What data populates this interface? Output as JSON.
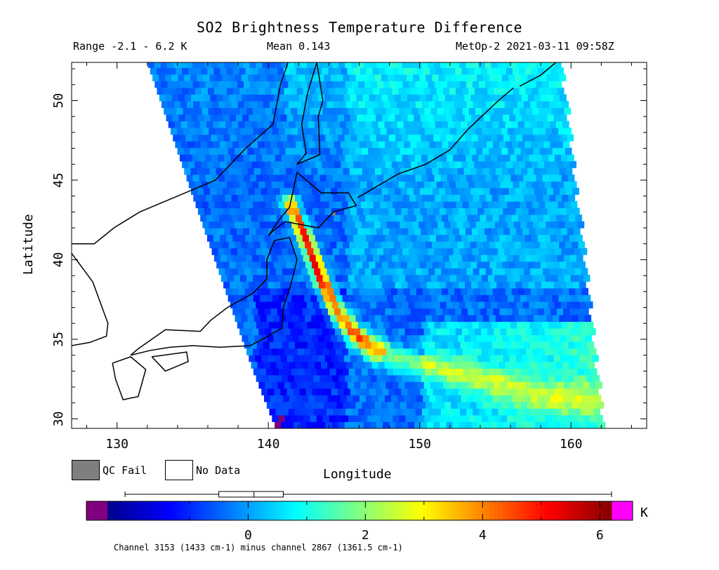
{
  "header": {
    "title": "SO2 Brightness Temperature Difference",
    "range": "Range -2.1 - 6.2 K",
    "mean": "Mean 0.143",
    "satellite_time": "MetOp-2 2021-03-11 09:58Z"
  },
  "legend": {
    "qc_fail": "QC Fail",
    "no_data": "No Data",
    "qc_fail_color": "#7f7f7f",
    "no_data_color": "#ffffff"
  },
  "colorbar": {
    "unit": "K",
    "ticks": [
      "0",
      "2",
      "4",
      "6"
    ],
    "tick_values": [
      0,
      2,
      4,
      6
    ],
    "min": -2.7,
    "max": 6.45,
    "under_color": "#800080",
    "over_color": "#ff00ff",
    "footnote": "Channel 3153 (1433 cm-1) minus channel 2867 (1361.5 cm-1)",
    "boxplot": {
      "min": -2.1,
      "q1": -0.5,
      "median": 0.1,
      "q3": 0.6,
      "max": 6.2
    }
  },
  "chart_data": {
    "type": "heatmap",
    "title": "SO2 Brightness Temperature Difference",
    "xlabel": "Longitude",
    "ylabel": "Latitude",
    "xlim": [
      127,
      165
    ],
    "ylim": [
      29.4,
      52.4
    ],
    "x_ticks": [
      "130",
      "140",
      "150",
      "160"
    ],
    "x_tick_values": [
      130,
      140,
      150,
      160
    ],
    "y_ticks": [
      "30",
      "35",
      "40",
      "45",
      "50"
    ],
    "y_tick_values": [
      30,
      35,
      40,
      45,
      50
    ],
    "value_range": [
      -2.1,
      6.2
    ],
    "mean": 0.143,
    "units": "K",
    "swath": {
      "left_edge": [
        [
          132,
          52.4
        ],
        [
          135,
          44
        ],
        [
          137,
          38.5
        ],
        [
          139,
          33
        ],
        [
          140.5,
          29.4
        ]
      ],
      "right_edge": [
        [
          159.2,
          52.4
        ],
        [
          162,
          29.4
        ]
      ]
    },
    "plume": [
      [
        141.2,
        43.4
      ],
      [
        142.2,
        41.3
      ],
      [
        143.2,
        38.8
      ],
      [
        144.2,
        36.8
      ],
      [
        145.2,
        35.4
      ],
      [
        146.5,
        34.3
      ],
      [
        148.5,
        33.5
      ],
      [
        151,
        33.0
      ],
      [
        154,
        32.3
      ],
      [
        157.5,
        31.3
      ],
      [
        161,
        31.0
      ]
    ],
    "plume_peak": [
      [
        143.5,
        38.2
      ],
      6.0
    ],
    "low_values_region": [
      [
        138.5,
        29.7
      ],
      [
        141,
        29.9
      ]
    ],
    "coastlines": [
      {
        "name": "Honshu",
        "points": [
          [
            130.9,
            34.0
          ],
          [
            132.2,
            34.3
          ],
          [
            133.5,
            34.5
          ],
          [
            135.0,
            34.6
          ],
          [
            136.8,
            34.5
          ],
          [
            138.8,
            34.6
          ],
          [
            139.8,
            35.1
          ],
          [
            140.9,
            35.7
          ],
          [
            141.0,
            37.0
          ],
          [
            141.5,
            38.5
          ],
          [
            141.9,
            40.0
          ],
          [
            141.4,
            41.4
          ],
          [
            140.4,
            41.2
          ],
          [
            139.9,
            40.0
          ],
          [
            139.9,
            38.8
          ],
          [
            139.0,
            37.9
          ],
          [
            137.3,
            37.0
          ],
          [
            136.2,
            36.2
          ],
          [
            135.5,
            35.5
          ],
          [
            133.2,
            35.6
          ],
          [
            131.4,
            34.4
          ],
          [
            130.9,
            34.0
          ]
        ]
      },
      {
        "name": "Kyushu",
        "points": [
          [
            129.7,
            33.5
          ],
          [
            130.9,
            33.9
          ],
          [
            131.9,
            33.1
          ],
          [
            131.4,
            31.4
          ],
          [
            130.4,
            31.2
          ],
          [
            129.9,
            32.5
          ],
          [
            129.7,
            33.5
          ]
        ]
      },
      {
        "name": "Shikoku",
        "points": [
          [
            132.3,
            33.9
          ],
          [
            134.6,
            34.2
          ],
          [
            134.7,
            33.6
          ],
          [
            133.2,
            33.0
          ],
          [
            132.3,
            33.9
          ]
        ]
      },
      {
        "name": "Hokkaido",
        "points": [
          [
            140.0,
            41.5
          ],
          [
            140.7,
            42.5
          ],
          [
            141.4,
            43.3
          ],
          [
            141.9,
            45.5
          ],
          [
            142.5,
            45.0
          ],
          [
            143.5,
            44.2
          ],
          [
            145.3,
            44.2
          ],
          [
            145.8,
            43.4
          ],
          [
            144.3,
            43.0
          ],
          [
            143.3,
            42.0
          ],
          [
            141.1,
            42.4
          ],
          [
            140.3,
            41.8
          ],
          [
            140.0,
            41.5
          ]
        ]
      },
      {
        "name": "Sakhalin",
        "points": [
          [
            141.9,
            46.0
          ],
          [
            142.5,
            46.7
          ],
          [
            142.2,
            48.5
          ],
          [
            142.6,
            50.5
          ],
          [
            143.2,
            52.4
          ],
          [
            143.6,
            50.0
          ],
          [
            143.3,
            49.0
          ],
          [
            143.4,
            46.6
          ],
          [
            141.9,
            46.0
          ]
        ]
      },
      {
        "name": "Kurils",
        "points": [
          [
            145.9,
            43.9
          ],
          [
            148.6,
            45.4
          ],
          [
            150.4,
            46.0
          ],
          [
            152.0,
            46.9
          ],
          [
            153.2,
            48.2
          ],
          [
            155.2,
            50.0
          ],
          [
            156.2,
            50.8
          ]
        ]
      },
      {
        "name": "Asia coast",
        "points": [
          [
            127.0,
            41.0
          ],
          [
            128.5,
            41.0
          ],
          [
            129.8,
            42.0
          ],
          [
            131.5,
            43.0
          ],
          [
            133.5,
            43.8
          ],
          [
            136.5,
            45.0
          ],
          [
            138.5,
            47.0
          ],
          [
            140.3,
            48.5
          ],
          [
            140.8,
            51.0
          ],
          [
            141.3,
            52.4
          ]
        ]
      },
      {
        "name": "Korea",
        "points": [
          [
            127.0,
            40.4
          ],
          [
            128.4,
            38.6
          ],
          [
            129.4,
            36.0
          ],
          [
            129.3,
            35.2
          ],
          [
            128.2,
            34.8
          ],
          [
            127.0,
            34.6
          ]
        ]
      },
      {
        "name": "Kamchatka",
        "points": [
          [
            156.6,
            50.9
          ],
          [
            158.0,
            51.6
          ],
          [
            159.0,
            52.4
          ]
        ]
      }
    ]
  }
}
